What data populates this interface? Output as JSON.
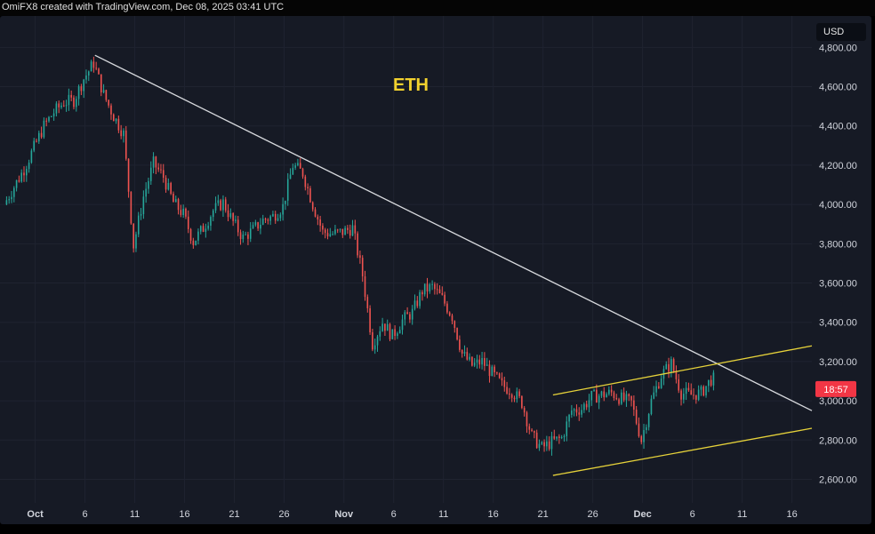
{
  "header": {
    "credit": "OmiFX8 created with TradingView.com, Dec 08, 2025 03:41 UTC"
  },
  "chart_data": {
    "type": "candlestick",
    "title": "",
    "currency": "USD",
    "annotation": "ETH",
    "x_range": [
      "2025-09-28",
      "2025-12-18"
    ],
    "ylim": [
      2480,
      4960
    ],
    "y_ticks": [
      "4,800.00",
      "4,600.00",
      "4,400.00",
      "4,200.00",
      "4,000.00",
      "3,800.00",
      "3,600.00",
      "3,400.00",
      "3,200.00",
      "3,000.00",
      "2,800.00",
      "2,600.00"
    ],
    "x_ticks": [
      {
        "date": "2025-10-01",
        "label": "Oct",
        "bold": true
      },
      {
        "date": "2025-10-06",
        "label": "6"
      },
      {
        "date": "2025-10-11",
        "label": "11"
      },
      {
        "date": "2025-10-16",
        "label": "16"
      },
      {
        "date": "2025-10-21",
        "label": "21"
      },
      {
        "date": "2025-10-26",
        "label": "26"
      },
      {
        "date": "2025-11-01",
        "label": "Nov",
        "bold": true
      },
      {
        "date": "2025-11-06",
        "label": "6"
      },
      {
        "date": "2025-11-11",
        "label": "11"
      },
      {
        "date": "2025-11-16",
        "label": "16"
      },
      {
        "date": "2025-11-21",
        "label": "21"
      },
      {
        "date": "2025-11-26",
        "label": "26"
      },
      {
        "date": "2025-12-01",
        "label": "Dec",
        "bold": true
      },
      {
        "date": "2025-12-06",
        "label": "6"
      },
      {
        "date": "2025-12-11",
        "label": "11"
      },
      {
        "date": "2025-12-16",
        "label": "16"
      }
    ],
    "price_path": [
      [
        "2025-09-28",
        4000
      ],
      [
        "2025-09-30",
        4180
      ],
      [
        "2025-10-01",
        4290
      ],
      [
        "2025-10-02",
        4400
      ],
      [
        "2025-10-03",
        4470
      ],
      [
        "2025-10-04",
        4520
      ],
      [
        "2025-10-05",
        4530
      ],
      [
        "2025-10-06",
        4640
      ],
      [
        "2025-10-07",
        4720
      ],
      [
        "2025-10-08",
        4560
      ],
      [
        "2025-10-09",
        4450
      ],
      [
        "2025-10-10",
        4360
      ],
      [
        "2025-10-11",
        3790
      ],
      [
        "2025-10-12",
        4040
      ],
      [
        "2025-10-13",
        4210
      ],
      [
        "2025-10-14",
        4140
      ],
      [
        "2025-10-15",
        4010
      ],
      [
        "2025-10-16",
        3950
      ],
      [
        "2025-10-17",
        3810
      ],
      [
        "2025-10-18",
        3880
      ],
      [
        "2025-10-19",
        3970
      ],
      [
        "2025-10-20",
        4010
      ],
      [
        "2025-10-21",
        3910
      ],
      [
        "2025-10-22",
        3830
      ],
      [
        "2025-10-23",
        3870
      ],
      [
        "2025-10-24",
        3920
      ],
      [
        "2025-10-25",
        3940
      ],
      [
        "2025-10-26",
        3990
      ],
      [
        "2025-10-27",
        4200
      ],
      [
        "2025-10-28",
        4160
      ],
      [
        "2025-10-29",
        4000
      ],
      [
        "2025-10-30",
        3860
      ],
      [
        "2025-10-31",
        3850
      ],
      [
        "2025-11-01",
        3860
      ],
      [
        "2025-11-02",
        3880
      ],
      [
        "2025-11-03",
        3640
      ],
      [
        "2025-11-04",
        3290
      ],
      [
        "2025-11-05",
        3400
      ],
      [
        "2025-11-06",
        3330
      ],
      [
        "2025-11-07",
        3410
      ],
      [
        "2025-11-08",
        3450
      ],
      [
        "2025-11-09",
        3560
      ],
      [
        "2025-11-10",
        3580
      ],
      [
        "2025-11-11",
        3520
      ],
      [
        "2025-11-12",
        3430
      ],
      [
        "2025-11-13",
        3240
      ],
      [
        "2025-11-14",
        3180
      ],
      [
        "2025-11-15",
        3200
      ],
      [
        "2025-11-16",
        3140
      ],
      [
        "2025-11-17",
        3080
      ],
      [
        "2025-11-18",
        3050
      ],
      [
        "2025-11-19",
        2990
      ],
      [
        "2025-11-20",
        2820
      ],
      [
        "2025-11-21",
        2760
      ],
      [
        "2025-11-22",
        2790
      ],
      [
        "2025-11-23",
        2810
      ],
      [
        "2025-11-24",
        2950
      ],
      [
        "2025-11-25",
        2960
      ],
      [
        "2025-11-26",
        3020
      ],
      [
        "2025-11-27",
        3030
      ],
      [
        "2025-11-28",
        3040
      ],
      [
        "2025-11-29",
        3010
      ],
      [
        "2025-11-30",
        2990
      ],
      [
        "2025-12-01",
        2800
      ],
      [
        "2025-12-02",
        3000
      ],
      [
        "2025-12-03",
        3130
      ],
      [
        "2025-12-04",
        3190
      ],
      [
        "2025-12-05",
        3040
      ],
      [
        "2025-12-06",
        3030
      ],
      [
        "2025-12-07",
        3040
      ],
      [
        "2025-12-08",
        3110
      ]
    ],
    "trendlines": [
      {
        "name": "downtrend",
        "color": "#d7d9dd",
        "start": [
          "2025-10-07",
          4760
        ],
        "end": [
          "2025-12-18",
          2950
        ]
      },
      {
        "name": "channel-upper",
        "color": "#e6d23a",
        "start": [
          "2025-11-22",
          3030
        ],
        "end": [
          "2025-12-18",
          3280
        ]
      },
      {
        "name": "channel-lower",
        "color": "#e6d23a",
        "start": [
          "2025-11-22",
          2620
        ],
        "end": [
          "2025-12-18",
          2860
        ]
      }
    ],
    "price_marker": {
      "value": 3060,
      "label": "18:57",
      "color": "#f23645"
    },
    "colors": {
      "up": "#26a69a",
      "down": "#ef5350",
      "background": "#161a25",
      "grid": "#1f2330"
    }
  }
}
